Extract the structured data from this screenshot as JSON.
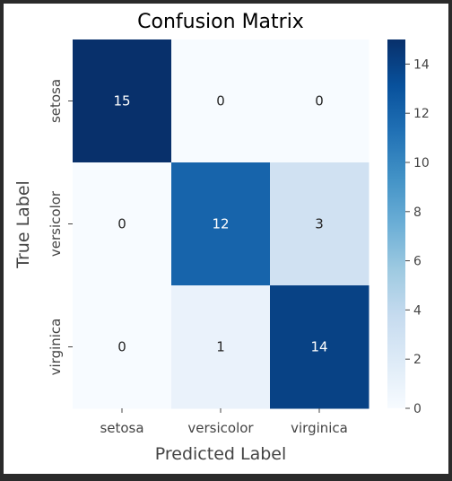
{
  "chart_data": {
    "type": "heatmap",
    "title": "Confusion Matrix",
    "xlabel": "Predicted Label",
    "ylabel": "True Label",
    "x_categories": [
      "setosa",
      "versicolor",
      "virginica"
    ],
    "y_categories": [
      "setosa",
      "versicolor",
      "virginica"
    ],
    "values": [
      [
        15,
        0,
        0
      ],
      [
        0,
        12,
        3
      ],
      [
        0,
        1,
        14
      ]
    ],
    "colormap": "Blues",
    "colorbar": {
      "range": [
        0,
        15
      ],
      "ticks": [
        0,
        2,
        4,
        6,
        8,
        10,
        12,
        14
      ]
    },
    "annotations": true
  }
}
